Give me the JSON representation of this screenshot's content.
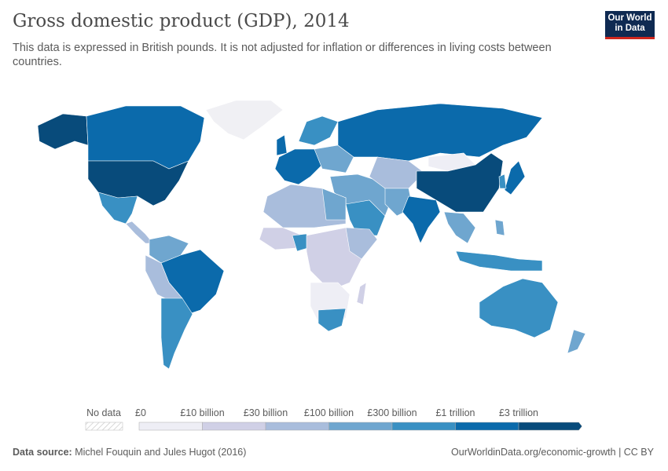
{
  "header": {
    "title": "Gross domestic product (GDP), 2014",
    "subtitle": "This data is expressed in British pounds. It is not adjusted for inflation or differences in living costs between countries.",
    "logo_line1": "Our World",
    "logo_line2": "in Data"
  },
  "legend": {
    "no_data_label": "No data",
    "bins": [
      {
        "label": "£0",
        "color": "#eeeef5"
      },
      {
        "label": "£10 billion",
        "color": "#d0d0e6"
      },
      {
        "label": "£30 billion",
        "color": "#a9bddc"
      },
      {
        "label": "£100 billion",
        "color": "#6fa6cf"
      },
      {
        "label": "£300 billion",
        "color": "#3990c3"
      },
      {
        "label": "£1 trillion",
        "color": "#0b6aab"
      },
      {
        "label": "£3 trillion",
        "color": "#084b7b"
      }
    ]
  },
  "colors": {
    "no_data": "#ffffff",
    "border": "#9a9a9a",
    "greenland": "#f0f0f4"
  },
  "footer": {
    "source_label": "Data source:",
    "source": "Michel Fouquin and Jules Hugot (2016)",
    "url": "OurWorldinData.org/economic-growth | CC BY"
  }
}
